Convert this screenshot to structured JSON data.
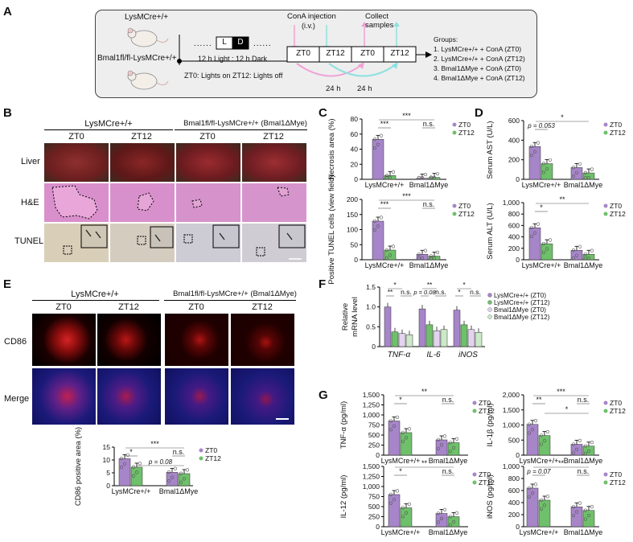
{
  "panels": {
    "A": "A",
    "B": "B",
    "C": "C",
    "D": "D",
    "E": "E",
    "F": "F",
    "G": "G"
  },
  "panelA": {
    "mouse_top": "LysMCre+/+",
    "mouse_bottom": "Bmal1fl/fl-LysMCre+/+",
    "light": "L",
    "dark": "D",
    "cycle": "12 h Light : 12 h Dark",
    "injection": "ConA injection",
    "injection_route": "(i.v.)",
    "collect": "Collect",
    "samples": "samples",
    "boxes": [
      "ZT0",
      "ZT12",
      "ZT0",
      "ZT12"
    ],
    "interval": "24 h",
    "note": "ZT0: Lights on ZT12: Lights off",
    "groups_title": "Groups:",
    "groups": [
      "1. LysMCre+/+ + ConA (ZT0)",
      "2. LysMCre+/+ + ConA (ZT12)",
      "3. Bmal1ΔMye + ConA (ZT0)",
      "4. Bmal1ΔMye + ConA (ZT12)"
    ]
  },
  "panelB": {
    "group1": "LysMCre+/+",
    "group2": "Bmal1fl/fl-LysMCre+/+ (Bmal1ΔMye)",
    "cols": [
      "ZT0",
      "ZT12",
      "ZT0",
      "ZT12"
    ],
    "rows": [
      "Liver",
      "H&E",
      "TUNEL"
    ]
  },
  "panelE": {
    "group1": "LysMCre+/+",
    "group2": "Bmal1fl/fl-LysMCre+/+ (Bmal1ΔMye)",
    "cols": [
      "ZT0",
      "ZT12",
      "ZT0",
      "ZT12"
    ],
    "rows": [
      "CD86",
      "Merge"
    ]
  },
  "colors": {
    "zt0": "#a785c9",
    "zt12": "#6ec06a",
    "schematic_bg": "#eeeeee",
    "pink": "#f0a2d6",
    "cyan": "#8fe0e0"
  },
  "chart_data": [
    {
      "id": "C-top",
      "type": "bar",
      "ylabel": "Necrosis area (%)",
      "ylim": [
        0,
        80
      ],
      "yticks": [
        "0",
        "20",
        "40",
        "60",
        "80"
      ],
      "categories": [
        "LysMCre+/+",
        "Bmal1ΔMye"
      ],
      "series": [
        {
          "name": "ZT0",
          "values": [
            53,
            1.5
          ]
        },
        {
          "name": "ZT12",
          "values": [
            5,
            2.5
          ]
        }
      ],
      "annotations": [
        "***",
        "***",
        "n.s."
      ]
    },
    {
      "id": "C-bottom",
      "type": "bar",
      "ylabel": "Positive TUNEL cells (view field)",
      "ylim": [
        0,
        200
      ],
      "yticks": [
        "0",
        "50",
        "100",
        "150",
        "200"
      ],
      "categories": [
        "LysMCre+/+",
        "Bmal1ΔMye"
      ],
      "series": [
        {
          "name": "ZT0",
          "values": [
            128,
            18
          ]
        },
        {
          "name": "ZT12",
          "values": [
            32,
            12
          ]
        }
      ],
      "annotations": [
        "***",
        "***",
        "n.s."
      ]
    },
    {
      "id": "D-top",
      "type": "bar",
      "ylabel": "Serum AST (U/L)",
      "ylim": [
        0,
        600
      ],
      "yticks": [
        "0",
        "200",
        "400",
        "600"
      ],
      "categories": [
        "LysMCre+/+",
        "Bmal1ΔMye"
      ],
      "series": [
        {
          "name": "ZT0",
          "values": [
            335,
            120
          ]
        },
        {
          "name": "ZT12",
          "values": [
            160,
            65
          ]
        }
      ],
      "annotations": [
        "*",
        "p = 0.053"
      ]
    },
    {
      "id": "D-bottom",
      "type": "bar",
      "ylabel": "Serum ALT (U/L)",
      "ylim": [
        0,
        1000
      ],
      "yticks": [
        "0",
        "200",
        "400",
        "600",
        "800",
        "1,000"
      ],
      "categories": [
        "LysMCre+/+",
        "Bmal1ΔMye"
      ],
      "series": [
        {
          "name": "ZT0",
          "values": [
            560,
            165
          ]
        },
        {
          "name": "ZT12",
          "values": [
            280,
            95
          ]
        }
      ],
      "annotations": [
        "**",
        "*"
      ]
    },
    {
      "id": "E",
      "type": "bar",
      "ylabel": "CD86 positive area (%)",
      "ylim": [
        0,
        15
      ],
      "yticks": [
        "0",
        "5",
        "10",
        "15"
      ],
      "categories": [
        "LysMCre+/+",
        "Bmal1ΔMye"
      ],
      "series": [
        {
          "name": "ZT0",
          "values": [
            10.5,
            5.2
          ]
        },
        {
          "name": "ZT12",
          "values": [
            7.2,
            4.7
          ]
        }
      ],
      "annotations": [
        "***",
        "*",
        "n.s.",
        "p = 0.08"
      ]
    },
    {
      "id": "F",
      "type": "bar",
      "ylabel": "Relative mRNA level",
      "ylim": [
        0,
        1.5
      ],
      "yticks": [
        "0",
        "0.5",
        "1.0",
        "1.5"
      ],
      "categories": [
        "TNF-α",
        "IL-6",
        "iNOS"
      ],
      "series": [
        {
          "name": "LysMCre+/+ (ZT0)",
          "values": [
            1.0,
            0.95,
            0.92
          ]
        },
        {
          "name": "LysMCre+/+ (ZT12)",
          "values": [
            0.37,
            0.55,
            0.55
          ]
        },
        {
          "name": "Bmal1ΔMye (ZT0)",
          "values": [
            0.33,
            0.4,
            0.43
          ]
        },
        {
          "name": "Bmal1ΔMye (ZT12)",
          "values": [
            0.3,
            0.43,
            0.36
          ]
        }
      ],
      "annotations": [
        "*",
        "**",
        "n.s.",
        "**",
        "p = 0.08",
        "n.s.",
        "*",
        "*",
        "n.s."
      ]
    },
    {
      "id": "G-tnf",
      "type": "bar",
      "ylabel": "TNF-α (pg/ml)",
      "ylim": [
        0,
        1500
      ],
      "yticks": [
        "0",
        "250",
        "500",
        "750",
        "1,000",
        "1,250",
        "1,500"
      ],
      "categories": [
        "LysMCre+/+",
        "Bmal1ΔMye"
      ],
      "series": [
        {
          "name": "ZT0",
          "values": [
            850,
            380
          ]
        },
        {
          "name": "ZT12",
          "values": [
            560,
            310
          ]
        }
      ],
      "annotations": [
        "**",
        "*",
        "n.s."
      ]
    },
    {
      "id": "G-il1b",
      "type": "bar",
      "ylabel": "IL-1β (pg/ml)",
      "ylim": [
        0,
        2000
      ],
      "yticks": [
        "0",
        "500",
        "1,000",
        "1,500",
        "2,000"
      ],
      "categories": [
        "LysMCre+/+",
        "Bmal1ΔMye"
      ],
      "series": [
        {
          "name": "ZT0",
          "values": [
            1020,
            360
          ]
        },
        {
          "name": "ZT12",
          "values": [
            650,
            300
          ]
        }
      ],
      "annotations": [
        "***",
        "**",
        "n.s.",
        "*"
      ]
    },
    {
      "id": "G-il12",
      "type": "bar",
      "ylabel": "IL-12 (pg/ml)",
      "ylim": [
        0,
        1500
      ],
      "yticks": [
        "0",
        "250",
        "500",
        "750",
        "1,000",
        "1,250",
        "1,500"
      ],
      "categories": [
        "LysMCre+/+",
        "Bmal1ΔMye"
      ],
      "series": [
        {
          "name": "ZT0",
          "values": [
            800,
            330
          ]
        },
        {
          "name": "ZT12",
          "values": [
            470,
            250
          ]
        }
      ],
      "annotations": [
        "**",
        "*",
        "n.s."
      ]
    },
    {
      "id": "G-inos",
      "type": "bar",
      "ylabel": "iNOS (pg/ml)",
      "ylim": [
        0,
        1000
      ],
      "yticks": [
        "0",
        "200",
        "400",
        "600",
        "800",
        "1,000"
      ],
      "categories": [
        "LysMCre+/+",
        "Bmal1ΔMye"
      ],
      "series": [
        {
          "name": "ZT0",
          "values": [
            640,
            330
          ]
        },
        {
          "name": "ZT12",
          "values": [
            440,
            270
          ]
        }
      ],
      "annotations": [
        "**",
        "p = 0.07",
        "n.s."
      ]
    }
  ]
}
